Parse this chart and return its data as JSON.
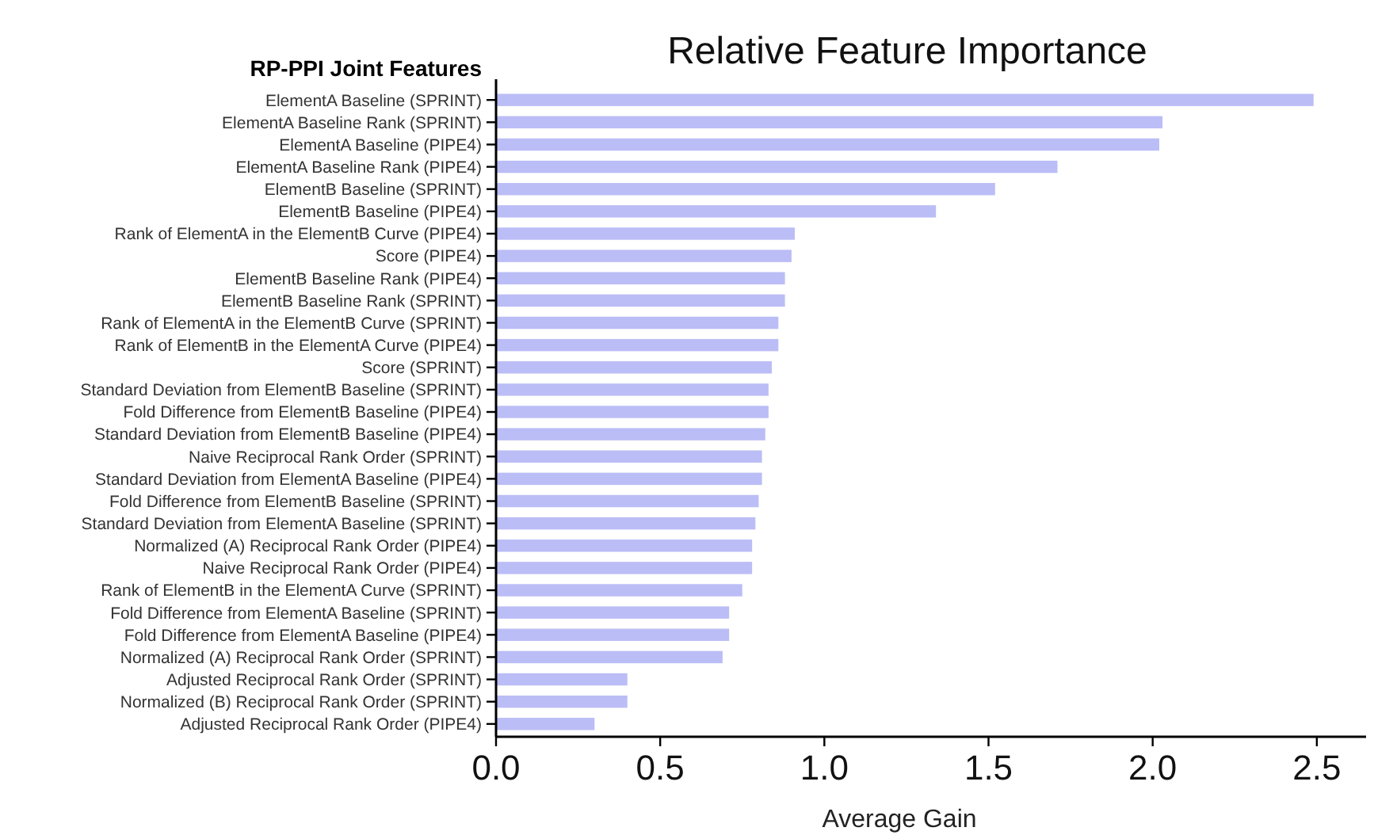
{
  "chart_data": {
    "type": "bar",
    "orientation": "horizontal",
    "title": "Relative Feature Importance",
    "xlabel": "Average Gain",
    "ylabel": "RP-PPI Joint Features",
    "categories": [
      "ElementA Baseline (SPRINT)",
      "ElementA Baseline Rank (SPRINT)",
      "ElementA Baseline (PIPE4)",
      "ElementA Baseline Rank (PIPE4)",
      "ElementB Baseline (SPRINT)",
      "ElementB Baseline (PIPE4)",
      "Rank of ElementA in the ElementB Curve (PIPE4)",
      "Score (PIPE4)",
      "ElementB Baseline Rank (PIPE4)",
      "ElementB Baseline Rank (SPRINT)",
      "Rank of ElementA in the ElementB Curve (SPRINT)",
      "Rank of ElementB in the ElementA Curve (PIPE4)",
      "Score (SPRINT)",
      "Standard Deviation from ElementB Baseline (SPRINT)",
      "Fold Difference from ElementB Baseline (PIPE4)",
      "Standard Deviation from ElementB Baseline (PIPE4)",
      "Naive Reciprocal Rank Order (SPRINT)",
      "Standard Deviation from ElementA Baseline (PIPE4)",
      "Fold Difference from ElementB Baseline (SPRINT)",
      "Standard Deviation from ElementA Baseline (SPRINT)",
      "Normalized (A) Reciprocal Rank Order (PIPE4)",
      "Naive Reciprocal Rank Order (PIPE4)",
      "Rank of ElementB in the ElementA Curve (SPRINT)",
      "Fold Difference from ElementA Baseline (SPRINT)",
      "Fold Difference from ElementA Baseline (PIPE4)",
      "Normalized (A) Reciprocal Rank Order (SPRINT)",
      "Adjusted Reciprocal Rank Order (SPRINT)",
      "Normalized (B) Reciprocal Rank Order (SPRINT)",
      "Adjusted Reciprocal Rank Order (PIPE4)"
    ],
    "values": [
      2.49,
      2.03,
      2.02,
      1.71,
      1.52,
      1.34,
      0.91,
      0.9,
      0.88,
      0.88,
      0.86,
      0.86,
      0.84,
      0.83,
      0.83,
      0.82,
      0.81,
      0.81,
      0.8,
      0.79,
      0.78,
      0.78,
      0.75,
      0.71,
      0.71,
      0.69,
      0.4,
      0.4,
      0.3
    ],
    "color": "#bbbdf6",
    "xlim": [
      0,
      2.65
    ],
    "xticks": [
      {
        "value": 0,
        "label": "0.0"
      },
      {
        "value": 0.5,
        "label": "0.5"
      },
      {
        "value": 1,
        "label": "1.0"
      },
      {
        "value": 1.5,
        "label": "1.5"
      },
      {
        "value": 2,
        "label": "2.0"
      },
      {
        "value": 2.5,
        "label": "2.5"
      }
    ],
    "grid": false
  }
}
